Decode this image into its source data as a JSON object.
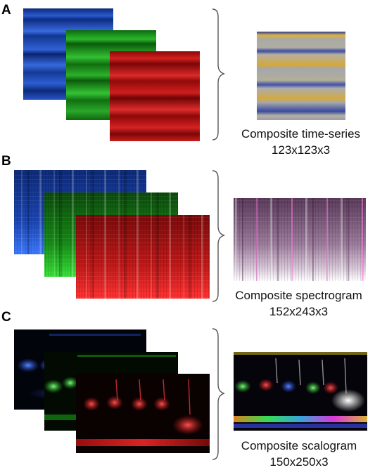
{
  "panels": [
    {
      "letter": "A",
      "caption_title": "Composite time-series",
      "caption_size": "123x123x3",
      "layers": [
        "blue",
        "green",
        "red"
      ],
      "composite": "time-series"
    },
    {
      "letter": "B",
      "caption_title": "Composite spectrogram",
      "caption_size": "152x243x3",
      "layers": [
        "blue",
        "green",
        "red"
      ],
      "composite": "spectrogram"
    },
    {
      "letter": "C",
      "caption_title": "Composite scalogram",
      "caption_size": "150x250x3",
      "layers": [
        "blue",
        "green",
        "red"
      ],
      "composite": "scalogram"
    }
  ],
  "colors": {
    "blue": "#1b4fc4",
    "green": "#1ea01e",
    "red": "#c81414",
    "brace": "#555555"
  }
}
